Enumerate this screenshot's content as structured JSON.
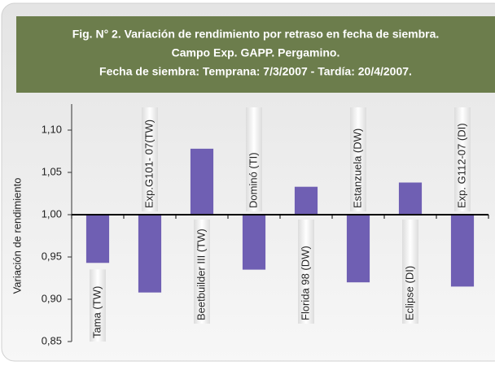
{
  "chart_data": {
    "type": "bar",
    "title": [
      "Fig. N° 2.  Variación de rendimiento por retraso en fecha de siembra.",
      "Campo Exp. GAPP. Pergamino.",
      "Fecha de siembra: Temprana: 7/3/2007 - Tardía: 20/4/2007."
    ],
    "y_label": "Variación de rendimiento",
    "categories": [
      "Tama (TW)",
      "Exp.G101- 07(TW)",
      "Beetbuilder III (TW)",
      "Dominó (TI)",
      "Florida 98 (DW)",
      "Estanzuela (DW)",
      "Eclipse (DI)",
      "Exp. G112-07 (DI)"
    ],
    "values": [
      0.943,
      0.908,
      1.078,
      0.935,
      1.033,
      0.92,
      1.038,
      0.915
    ],
    "baseline": 1.0,
    "color": "#6f5fb3",
    "ylim": [
      0.85,
      1.1
    ],
    "yticks": [
      {
        "value": 0.85,
        "label": "0,85"
      },
      {
        "value": 0.9,
        "label": "0,90"
      },
      {
        "value": 0.95,
        "label": "0,95"
      },
      {
        "value": 1.0,
        "label": "1,00"
      },
      {
        "value": 1.05,
        "label": "1,05"
      },
      {
        "value": 1.1,
        "label": "1,10"
      }
    ],
    "grid": false
  }
}
